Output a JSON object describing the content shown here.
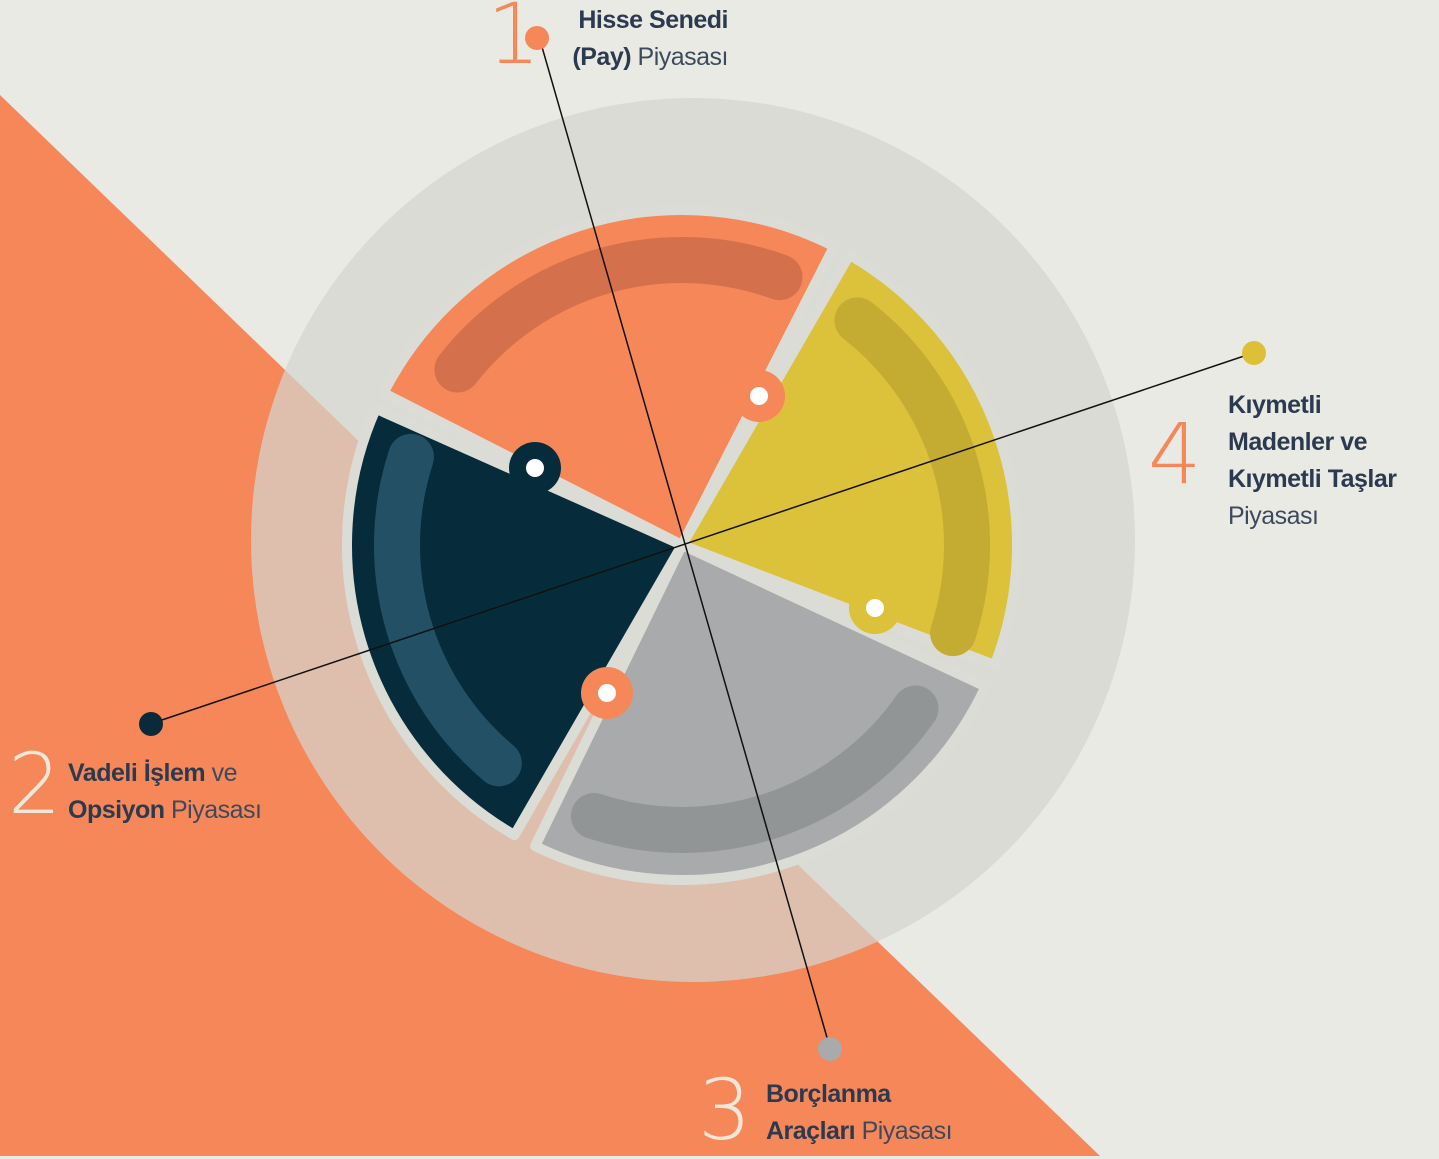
{
  "items": [
    {
      "number": "1",
      "lines": [
        [
          {
            "text": "Hisse Senedi",
            "bold": true
          }
        ],
        [
          {
            "text": "(Pay)",
            "bold": true
          },
          {
            "text": "Piyasası",
            "bold": false
          }
        ]
      ]
    },
    {
      "number": "2",
      "lines": [
        [
          {
            "text": "Vadeli İşlem",
            "bold": true
          },
          {
            "text": "ve",
            "bold": false
          }
        ],
        [
          {
            "text": "Opsiyon",
            "bold": true
          },
          {
            "text": "Piyasası",
            "bold": false
          }
        ]
      ]
    },
    {
      "number": "3",
      "lines": [
        [
          {
            "text": "Borçlanma",
            "bold": true
          }
        ],
        [
          {
            "text": "Araçları",
            "bold": true
          },
          {
            "text": "Piyasası",
            "bold": false
          }
        ]
      ]
    },
    {
      "number": "4",
      "lines": [
        [
          {
            "text": "Kıymetli",
            "bold": true
          }
        ],
        [
          {
            "text": "Madenler ve",
            "bold": true
          }
        ],
        [
          {
            "text": "Kıymetli Taşlar",
            "bold": true
          }
        ],
        [
          {
            "text": "Piyasası",
            "bold": false
          }
        ]
      ]
    }
  ]
}
